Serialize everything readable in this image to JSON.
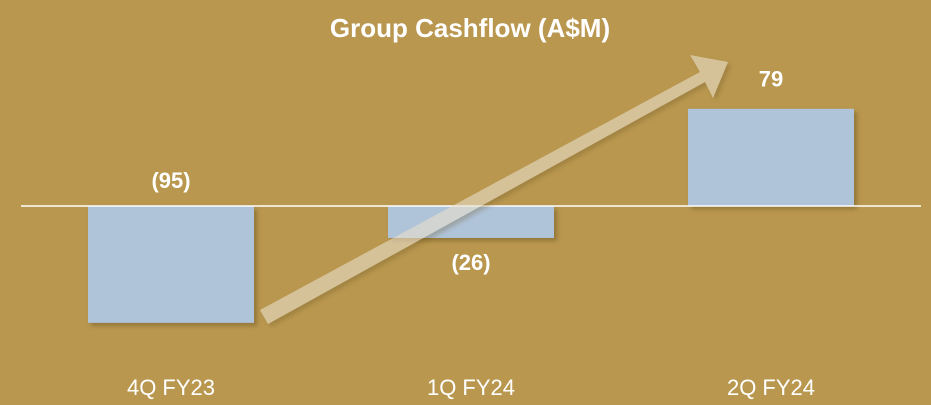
{
  "chart_data": {
    "type": "bar",
    "title": "Group Cashflow (A$M)",
    "categories": [
      "4Q FY23",
      "1Q FY24",
      "2Q FY24"
    ],
    "values": [
      -95,
      -26,
      79
    ],
    "value_labels": [
      "(95)",
      "(26)",
      "79"
    ],
    "color": "#afc3d9",
    "ylim": [
      -100,
      100
    ]
  }
}
